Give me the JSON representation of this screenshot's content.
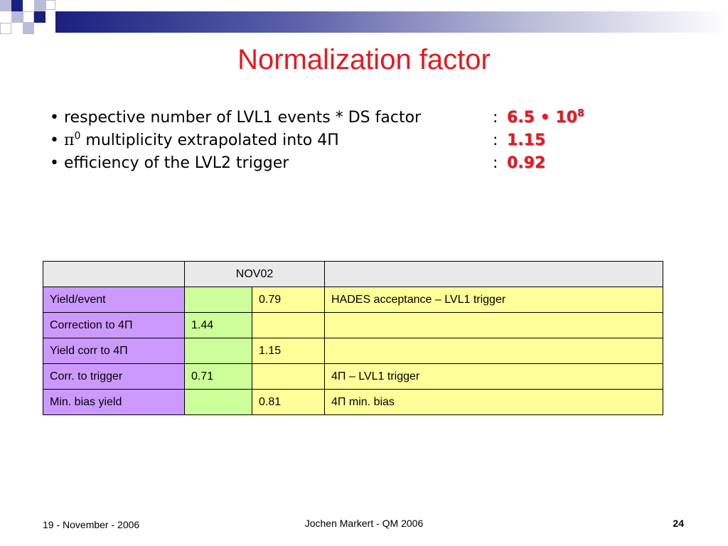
{
  "slide": {
    "title": "Normalization factor",
    "bullets": [
      {
        "text": "respective number of LVL1 events * DS factor",
        "value_base": "6.5 • 10",
        "value_exp": "8"
      },
      {
        "prefix": "π",
        "prefix_exp": "0",
        "text": " multiplicity extrapolated into 4Π",
        "value": "1.15"
      },
      {
        "text": "efficiency of the LVL2 trigger",
        "value": "0.92"
      }
    ],
    "bullet_char": "•",
    "colon": ":",
    "table": {
      "header": [
        "",
        "NOV02",
        ""
      ],
      "rows": [
        [
          "Yield/event",
          "",
          "0.79",
          "HADES acceptance – LVL1 trigger"
        ],
        [
          "Correction to 4Π",
          "1.44",
          "",
          ""
        ],
        [
          "Yield corr to 4Π",
          "",
          "1.15",
          ""
        ],
        [
          "Corr. to trigger",
          "0.71",
          "",
          "4Π – LVL1 trigger"
        ],
        [
          "Min. bias yield",
          "",
          "0.81",
          "4Π min. bias"
        ]
      ]
    },
    "footer": {
      "date": "19 - November - 2006",
      "author": "Jochen Markert - QM 2006",
      "page": "24"
    },
    "colors": {
      "title": "#e8171e",
      "label_col": "#cc99ff",
      "value_col": "#ccff99",
      "note_col": "#ffff99",
      "header_row": "#e9e9e9",
      "deco_blue": "#1a1f80"
    }
  }
}
